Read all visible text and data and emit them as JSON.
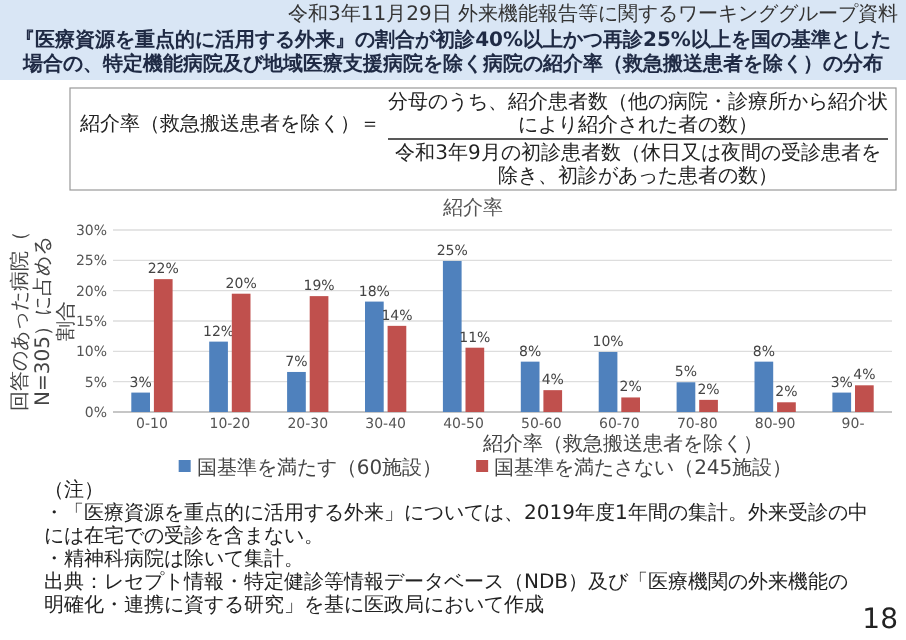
{
  "chart_data": {
    "type": "bar",
    "title": "『医療資源を重点的に活用する外来』の割合が初診40%以上かつ再診25%以上を国の基準とした場合の、特定機能病院及び地域医療支援病院を除く病院の紹介率（救急搬送患者を除く）の分布",
    "subtitle": "紹介率",
    "xlabel": "紹介率（救急搬送患者を除く）",
    "ylabel": "回答のあった病院（N=305）に占める割合",
    "categories": [
      "0-10",
      "10-20",
      "20-30",
      "30-40",
      "40-50",
      "50-60",
      "60-70",
      "70-80",
      "80-90",
      "90-"
    ],
    "series": [
      {
        "name": "国基準を満たす（60施設）",
        "color": "#4f81bd",
        "values": [
          3.2,
          11.6,
          6.6,
          18.2,
          24.9,
          8.3,
          9.9,
          4.9,
          8.3,
          3.2
        ],
        "value_labels": [
          "3%",
          "12%",
          "7%",
          "18%",
          "25%",
          "8%",
          "10%",
          "5%",
          "8%",
          "3%"
        ]
      },
      {
        "name": "国基準を満たさない（245施設）",
        "color": "#c0504d",
        "values": [
          21.9,
          19.5,
          19.1,
          14.2,
          10.6,
          3.6,
          2.4,
          2.0,
          1.6,
          4.4
        ],
        "value_labels": [
          "22%",
          "20%",
          "19%",
          "14%",
          "11%",
          "4%",
          "2%",
          "2%",
          "2%",
          "4%"
        ]
      }
    ],
    "ylim": [
      0,
      30
    ],
    "yticks": [
      {
        "value": 0,
        "label": "0%"
      },
      {
        "value": 5,
        "label": "5%"
      },
      {
        "value": 10,
        "label": "10%"
      },
      {
        "value": 15,
        "label": "15%"
      },
      {
        "value": 20,
        "label": "20%"
      },
      {
        "value": 25,
        "label": "25%"
      },
      {
        "value": 30,
        "label": "30%"
      }
    ],
    "grid": "y",
    "legend": "bottom",
    "annotations": [
      "令和3年11月29日 外来機能報告等に関するワーキンググループ資料",
      "紹介率（救急搬送患者を除く）＝",
      "分母のうち、紹介患者数（他の病院・診療所から紹介状により紹介された者の数）",
      "令和3年9月の初診患者数（休日又は夜間の受診患者を除き、初診があった患者の数）",
      "（注）",
      "・「医療資源を重点的に活用する外来」については、2019年度1年間の集計。外来受診の中には在宅での受診を含まない。",
      "・精神科病院は除いて集計。",
      "出典：レセプト情報・特定健診等情報データベース（NDB）及び「医療機関の外来機能の明確化・連携に資する研究」を基に医政局において作成",
      "18"
    ]
  }
}
